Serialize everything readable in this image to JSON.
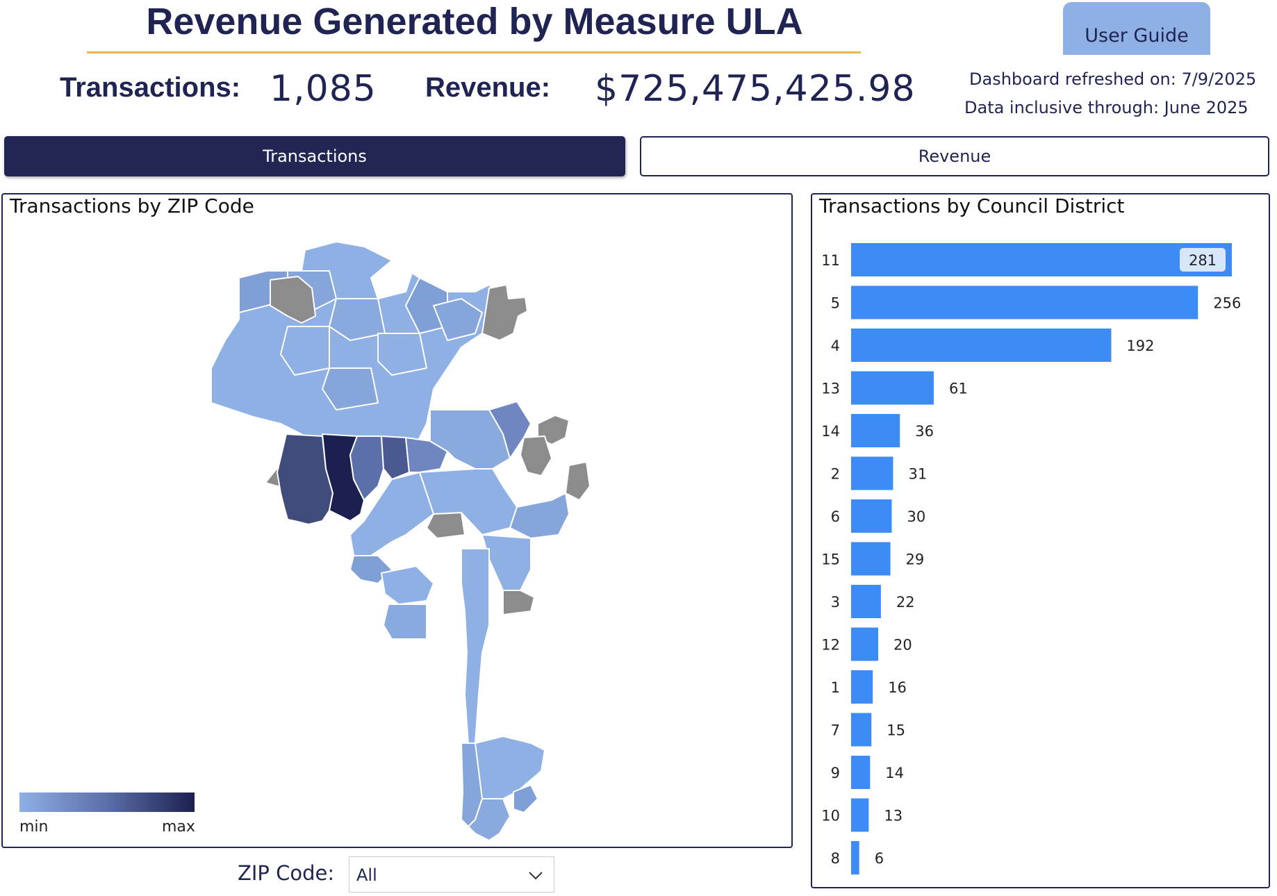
{
  "header": {
    "title": "Revenue Generated by Measure ULA",
    "user_guide_label": "User Guide",
    "refreshed_text": "Dashboard refreshed on: 7/9/2025",
    "inclusive_text": "Data inclusive through: June 2025"
  },
  "kpis": {
    "transactions_label": "Transactions:",
    "transactions_value": "1,085",
    "revenue_label": "Revenue:",
    "revenue_value": "$725,475,425.98"
  },
  "tabs": [
    {
      "label": "Transactions",
      "active": true
    },
    {
      "label": "Revenue",
      "active": false
    }
  ],
  "map": {
    "title": "Transactions by ZIP Code",
    "legend_min": "min",
    "legend_max": "max",
    "colors": {
      "min": "#8fb0e4",
      "max": "#1c2050",
      "no_data": "#8c8c8c"
    }
  },
  "filter": {
    "label": "ZIP Code:",
    "value": "All"
  },
  "chart_data": {
    "type": "bar",
    "orientation": "horizontal",
    "title": "Transactions by Council District",
    "categories": [
      "11",
      "5",
      "4",
      "13",
      "14",
      "2",
      "6",
      "15",
      "3",
      "12",
      "1",
      "7",
      "9",
      "10",
      "8"
    ],
    "values": [
      281,
      256,
      192,
      61,
      36,
      31,
      30,
      29,
      22,
      20,
      16,
      15,
      14,
      13,
      6
    ],
    "bar_color": "#3d8bf5",
    "data_labels": true
  }
}
